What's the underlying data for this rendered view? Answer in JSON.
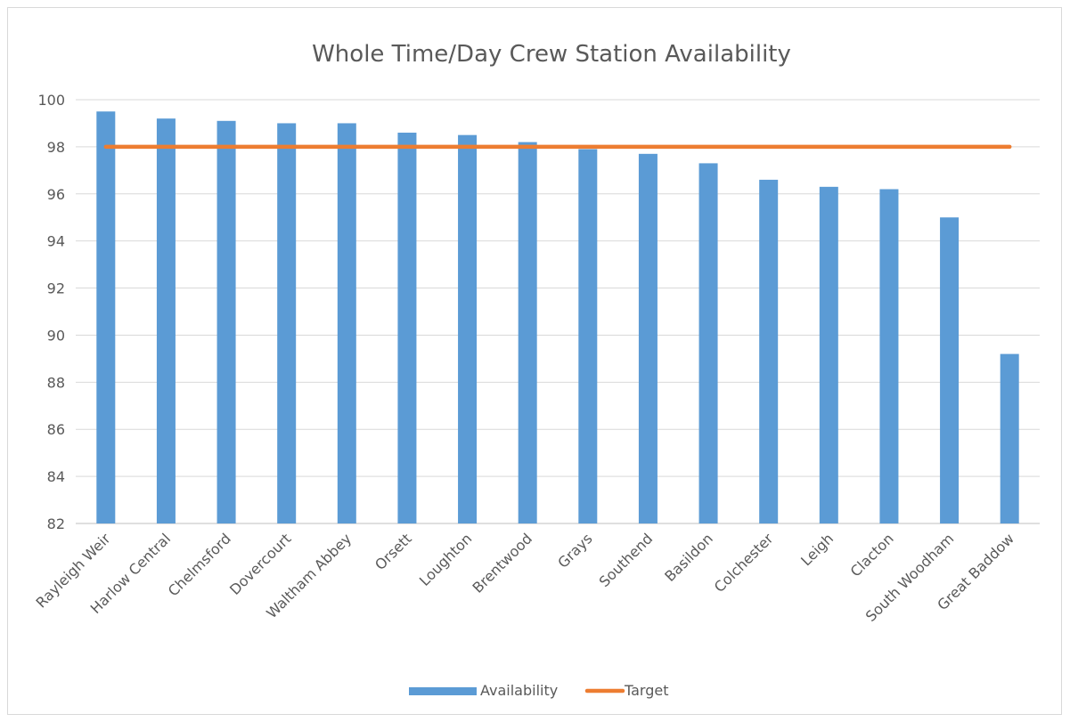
{
  "chart_data": {
    "type": "bar",
    "title": "Whole Time/Day Crew Station Availability",
    "xlabel": "",
    "ylabel": "",
    "categories": [
      "Rayleigh Weir",
      "Harlow Central",
      "Chelmsford",
      "Dovercourt",
      "Waltham Abbey",
      "Orsett",
      "Loughton",
      "Brentwood",
      "Grays",
      "Southend",
      "Basildon",
      "Colchester",
      "Leigh",
      "Clacton",
      "South Woodham",
      "Great Baddow"
    ],
    "series": [
      {
        "name": "Availability",
        "type": "bar",
        "color": "#5b9bd5",
        "values": [
          99.5,
          99.2,
          99.1,
          99.0,
          99.0,
          98.6,
          98.5,
          98.2,
          97.9,
          97.7,
          97.3,
          96.6,
          96.3,
          96.2,
          95.0,
          89.2
        ]
      },
      {
        "name": "Target",
        "type": "line",
        "color": "#ed7d31",
        "values": [
          98,
          98,
          98,
          98,
          98,
          98,
          98,
          98,
          98,
          98,
          98,
          98,
          98,
          98,
          98,
          98
        ]
      }
    ],
    "ylim": [
      82,
      100
    ],
    "yticks": [
      82,
      84,
      86,
      88,
      90,
      92,
      94,
      96,
      98,
      100
    ],
    "grid": true,
    "legend": "bottom"
  }
}
